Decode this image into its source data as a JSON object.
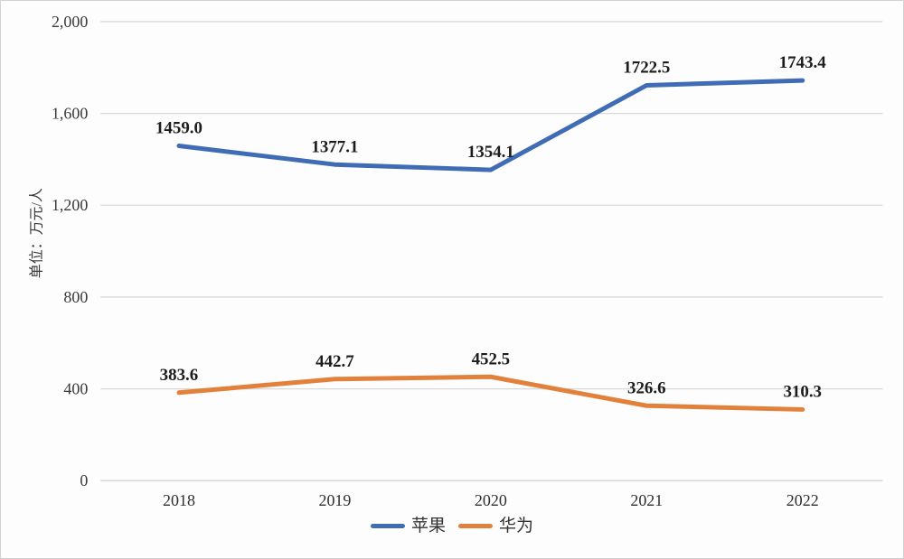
{
  "chart": {
    "unit_label": "单位：万元/人",
    "y_tick_labels": [
      "0",
      "400",
      "800",
      "1,200",
      "1,600",
      "2,000"
    ],
    "colors": {
      "apple_line": "#3f6cb5",
      "huawei_line": "#e2813b",
      "gridline": "#d9d9d9",
      "axis_line": "#d0d0d0"
    }
  },
  "chart_data": {
    "type": "line",
    "categories": [
      "2018",
      "2019",
      "2020",
      "2021",
      "2022"
    ],
    "series": [
      {
        "name": "苹果",
        "color": "#3f6cb5",
        "values": [
          1459.0,
          1377.1,
          1354.1,
          1722.5,
          1743.4
        ],
        "labels": [
          "1459.0",
          "1377.1",
          "1354.1",
          "1722.5",
          "1743.4"
        ]
      },
      {
        "name": "华为",
        "color": "#e2813b",
        "values": [
          383.6,
          442.7,
          452.5,
          326.6,
          310.3
        ],
        "labels": [
          "383.6",
          "442.7",
          "452.5",
          "326.6",
          "310.3"
        ]
      }
    ],
    "title": "",
    "xlabel": "",
    "ylabel": "单位：万元/人",
    "ylim": [
      0,
      2000
    ],
    "y_tick_step": 400,
    "grid": true,
    "legend_position": "bottom"
  }
}
